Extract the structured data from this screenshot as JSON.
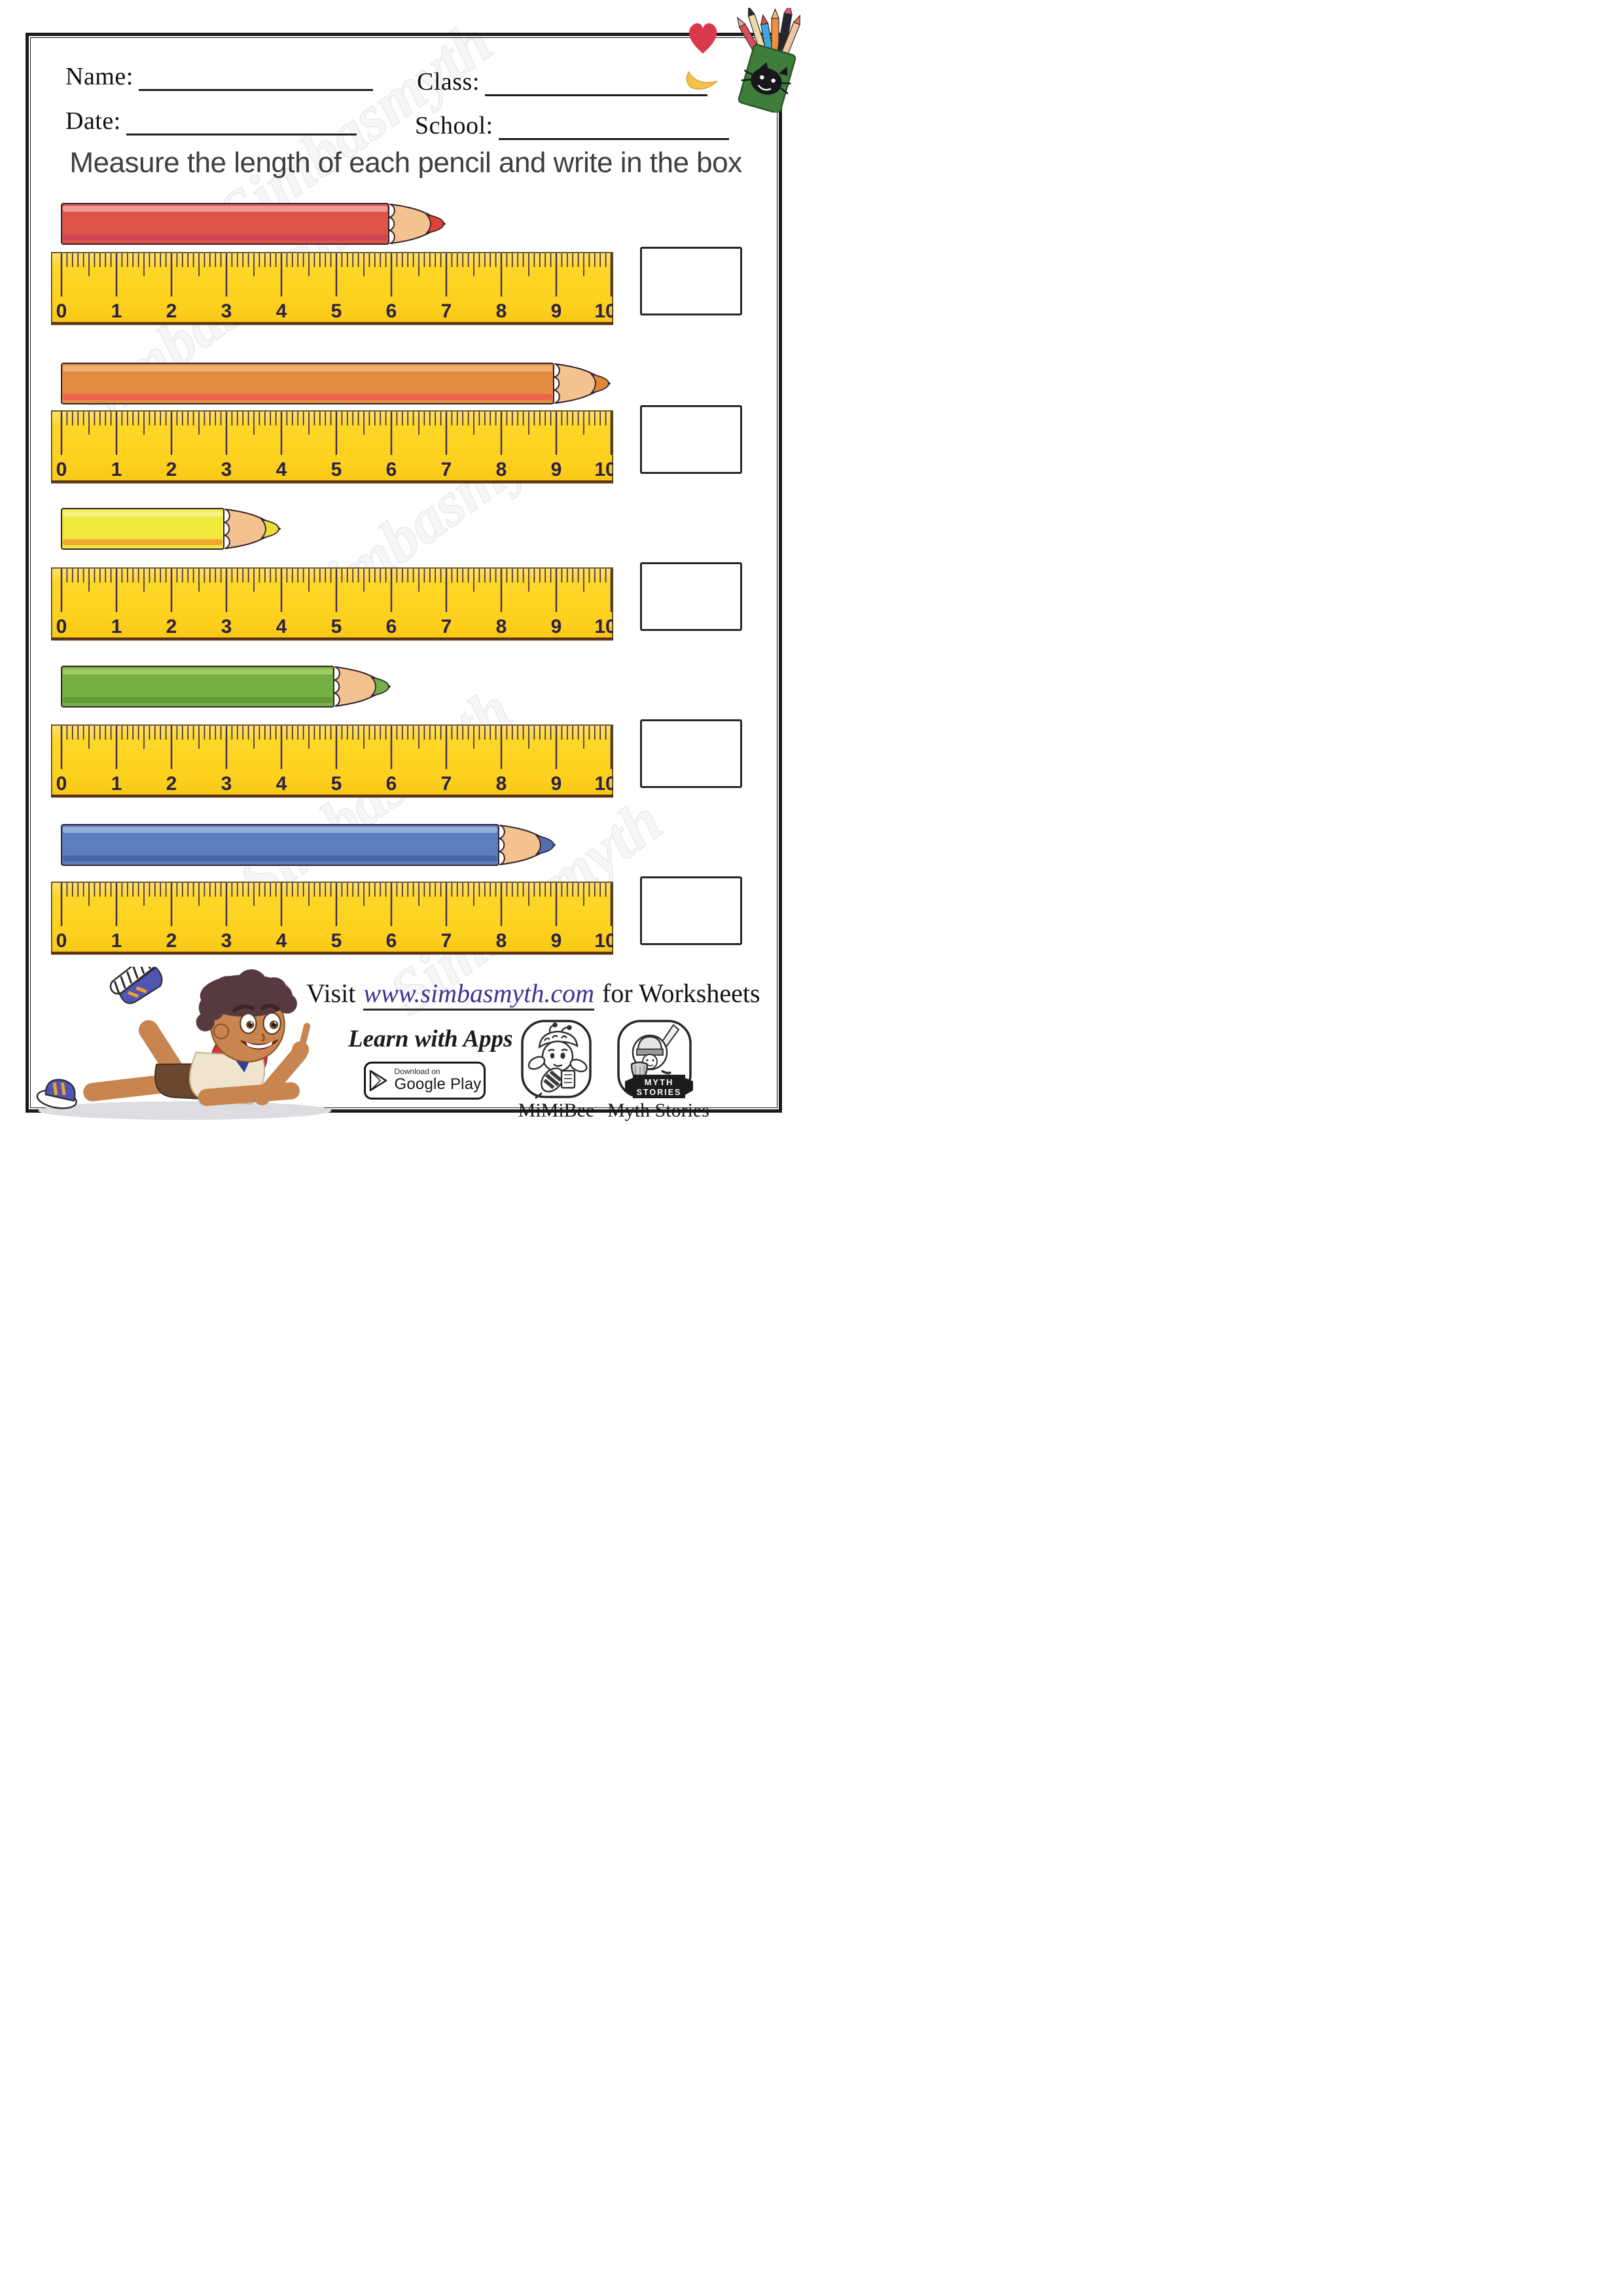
{
  "header": {
    "fields": [
      {
        "id": "name",
        "label": "Name:"
      },
      {
        "id": "class",
        "label": "Class:"
      },
      {
        "id": "date",
        "label": "Date:"
      },
      {
        "id": "school",
        "label": "School:"
      }
    ]
  },
  "title": "Measure the length of each pencil and write in the box",
  "watermark": "Simbasmyth",
  "ruler": {
    "unit_min": 0,
    "unit_max": 10,
    "numbers": [
      "0",
      "1",
      "2",
      "3",
      "4",
      "5",
      "6",
      "7",
      "8",
      "9",
      "10"
    ]
  },
  "pencils": [
    {
      "color_name": "red",
      "length_cm": 7,
      "body": "#dc5446",
      "stripe_top": "#f09b98",
      "stripe_bottom": "#cc4550",
      "lead": "#df4238"
    },
    {
      "color_name": "orange",
      "length_cm": 10,
      "body": "#e28c42",
      "stripe_top": "#efb273",
      "stripe_bottom": "#f2614d",
      "lead": "#e2873a"
    },
    {
      "color_name": "yellow",
      "length_cm": 4,
      "body": "#efe93e",
      "stripe_top": "#f7f282",
      "stripe_bottom": "#f0a82e",
      "lead": "#e8dd37"
    },
    {
      "color_name": "green",
      "length_cm": 6,
      "body": "#76b044",
      "stripe_top": "#a2ca62",
      "stripe_bottom": "#649a38",
      "lead": "#76b044"
    },
    {
      "color_name": "blue",
      "length_cm": 9,
      "body": "#5c7ec0",
      "stripe_top": "#93aedb",
      "stripe_bottom": "#49679f",
      "lead": "#5070b2"
    }
  ],
  "answer_box_value": "",
  "footer": {
    "visit_prefix": "Visit",
    "visit_link": "www.simbasmyth.com",
    "visit_suffix": "for Worksheets",
    "learn_with_apps": "Learn with Apps",
    "google_play": {
      "line1": "Download on",
      "line2": "Google Play"
    },
    "apps": [
      {
        "label": "MiMiBee"
      },
      {
        "label": "Myth Stories",
        "banner": [
          "MYTH",
          "STORIES"
        ]
      }
    ]
  },
  "colors": {
    "ruler_body": "#fdd21e",
    "ruler_top": "#ffe170",
    "ruler_tick": "#3d2c52",
    "ruler_number": "#2c2145",
    "ruler_bottom_edge": "#5c3414",
    "wood": "#f3c28e",
    "outline": "#33222e",
    "page_border": "#1b1b1b",
    "title_text": "#3e3e3e",
    "link": "#3a3492",
    "heart": "#d9394b",
    "cup_green": "#3f7d3a"
  }
}
